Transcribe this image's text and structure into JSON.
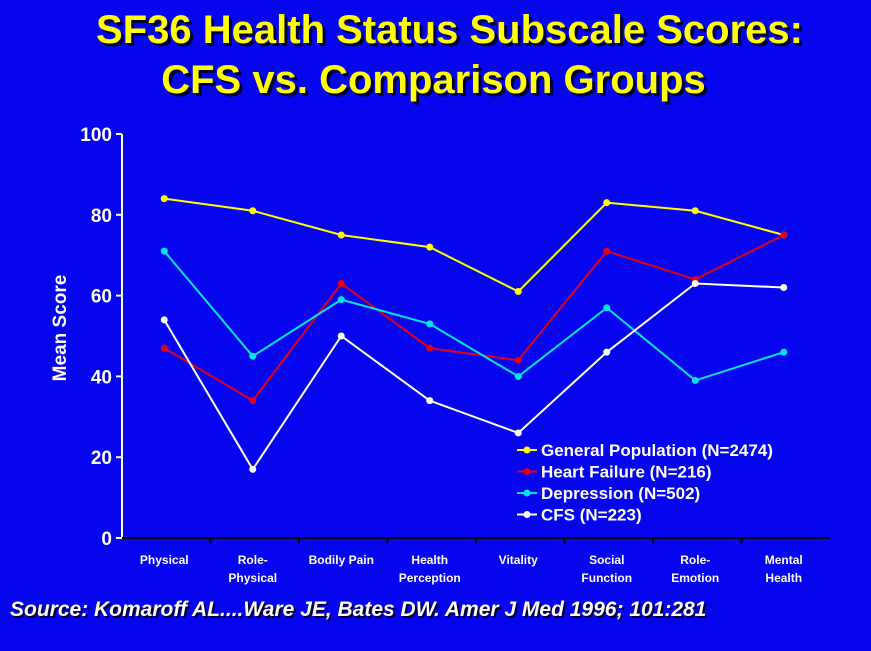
{
  "chart_data": {
    "type": "line",
    "title": "SF36 Health Status Subscale Scores:",
    "subtitle": "CFS vs. Comparison Groups",
    "xlabel": "",
    "ylabel": "Mean Score",
    "ylim": [
      0,
      100
    ],
    "yticks": [
      "0",
      "20",
      "40",
      "60",
      "80",
      "100"
    ],
    "categories": [
      [
        "Physical"
      ],
      [
        "Role-",
        "Physical"
      ],
      [
        "Bodily Pain"
      ],
      [
        "Health",
        "Perception"
      ],
      [
        "Vitality"
      ],
      [
        "Social",
        "Function"
      ],
      [
        "Role-",
        "Emotion"
      ],
      [
        "Mental",
        "Health"
      ]
    ],
    "legend_position": "bottom-right",
    "series": [
      {
        "name": "General Population (N=2474)",
        "color": "#ffff00",
        "values": [
          84,
          81,
          75,
          72,
          61,
          83,
          81,
          75
        ]
      },
      {
        "name": "Heart Failure (N=216)",
        "color": "#e0001a",
        "values": [
          47,
          34,
          63,
          47,
          44,
          71,
          64,
          75
        ]
      },
      {
        "name": "Depression (N=502)",
        "color": "#00e5f0",
        "values": [
          71,
          45,
          59,
          53,
          40,
          57,
          39,
          46
        ]
      },
      {
        "name": "CFS (N=223)",
        "color": "#ffffff",
        "values": [
          54,
          17,
          50,
          34,
          26,
          46,
          63,
          62
        ]
      }
    ]
  },
  "source": "Source: Komaroff AL....Ware JE, Bates DW.  Amer J Med 1996; 101:281"
}
